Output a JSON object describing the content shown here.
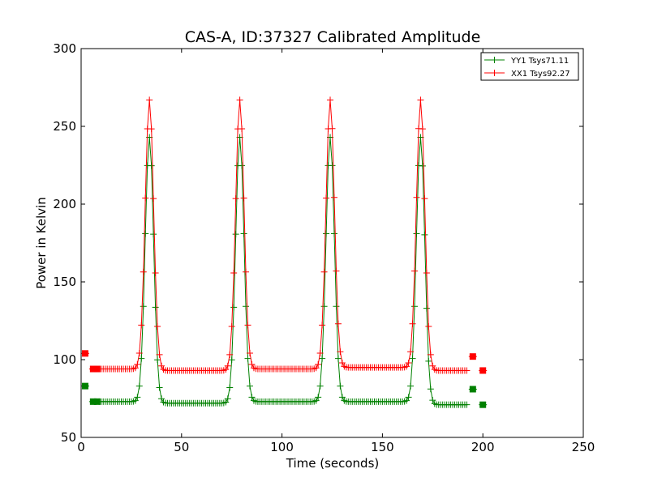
{
  "chart_data": {
    "type": "line",
    "title": "CAS-A, ID:37327 Calibrated Amplitude",
    "xlabel": "Time (seconds)",
    "ylabel": "Power in Kelvin",
    "xlim": [
      0,
      250
    ],
    "ylim": [
      50,
      300
    ],
    "xticks": [
      0,
      50,
      100,
      150,
      200,
      250
    ],
    "yticks": [
      50,
      100,
      150,
      200,
      250,
      300
    ],
    "grid": false,
    "legend_position": "top-right",
    "peak_centers": [
      34,
      79,
      124,
      169
    ],
    "series": [
      {
        "name": "YY1 Tsys71.11",
        "color": "#008000",
        "marker": "+",
        "baselines": [
          73,
          72,
          73,
          73,
          71
        ],
        "peak_value": 243,
        "square_markers": [
          [
            2,
            83
          ],
          [
            6,
            73
          ],
          [
            8,
            73
          ],
          [
            195,
            81
          ],
          [
            200,
            71
          ]
        ]
      },
      {
        "name": "XX1 Tsys92.27",
        "color": "#ff0000",
        "marker": "+",
        "baselines": [
          94,
          93,
          94,
          95,
          93
        ],
        "peak_value": 267,
        "square_markers": [
          [
            2,
            104
          ],
          [
            6,
            94
          ],
          [
            8,
            94
          ],
          [
            195,
            102
          ],
          [
            200,
            93
          ]
        ]
      }
    ]
  }
}
